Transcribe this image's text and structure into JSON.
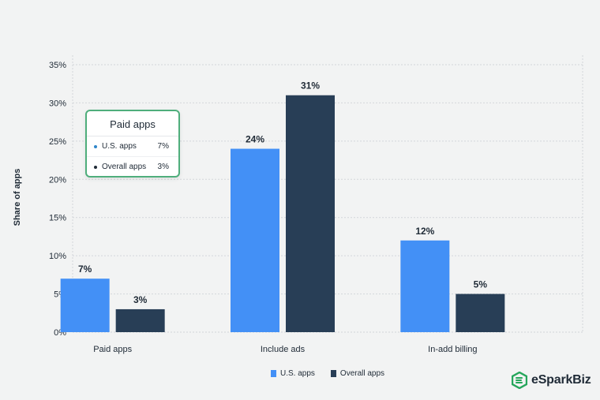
{
  "chart_data": {
    "type": "bar",
    "categories": [
      "Paid apps",
      "Include ads",
      "In-add billing"
    ],
    "series": [
      {
        "name": "U.S. apps",
        "values": [
          7,
          24,
          12
        ],
        "color": "#4390f6"
      },
      {
        "name": "Overall apps",
        "values": [
          3,
          31,
          5
        ],
        "color": "#283e56"
      }
    ],
    "data_labels": [
      [
        "7%",
        "24%",
        "12%"
      ],
      [
        "3%",
        "31%",
        "5%"
      ]
    ],
    "ylabel": "Share of apps",
    "ylim": [
      0,
      35
    ],
    "yticks": [
      0,
      5,
      10,
      15,
      20,
      25,
      30,
      35
    ],
    "ytick_labels": [
      "0%",
      "5%",
      "10%",
      "15%",
      "20%",
      "25%",
      "30%",
      "35%"
    ],
    "grid": true,
    "legend_position": "bottom-center"
  },
  "tooltip": {
    "title": "Paid apps",
    "rows": [
      {
        "name": "U.S. apps",
        "value": "7%",
        "color": "#2f86c9"
      },
      {
        "name": "Overall apps",
        "value": "3%",
        "color": "#1f2a36"
      }
    ]
  },
  "legend": {
    "items": [
      {
        "name": "U.S. apps",
        "color": "#4390f6"
      },
      {
        "name": "Overall apps",
        "color": "#283e56"
      }
    ]
  },
  "brand": {
    "name": "eSparkBiz",
    "icon": "esparkbiz-logo-icon",
    "color": "#26a65b"
  }
}
